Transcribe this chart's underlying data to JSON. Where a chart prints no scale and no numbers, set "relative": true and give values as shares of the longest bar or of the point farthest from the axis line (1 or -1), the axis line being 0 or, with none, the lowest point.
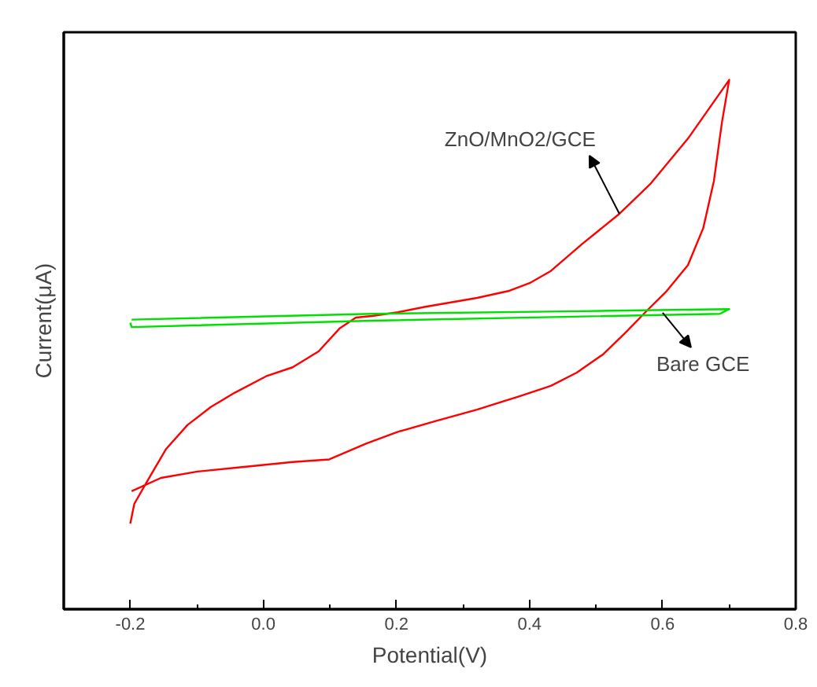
{
  "chart_data": {
    "type": "line",
    "relative": true,
    "xlabel": "Potential(V)",
    "ylabel": "Current(μA)",
    "xlim": [
      -0.3,
      0.8
    ],
    "xticks": [
      -0.2,
      {
        "value": 0,
        "label": "0.0"
      },
      0.2,
      0.4,
      0.6,
      0.8
    ],
    "tick_labels": "x",
    "grid": false,
    "marker": "none",
    "line_style": "solid",
    "series": [
      {
        "color": "#ff0000",
        "x": [
          -0.2,
          -0.194,
          -0.174,
          -0.146,
          -0.114,
          -0.079,
          -0.043,
          0.004,
          0.044,
          0.083,
          0.115,
          0.139,
          0.163,
          0.202,
          0.242,
          0.321,
          0.368,
          0.4,
          0.432,
          0.479,
          0.535,
          0.582,
          0.638,
          0.7,
          0.689,
          0.677,
          0.661,
          0.638,
          0.606,
          0.574,
          0.543,
          0.511,
          0.471,
          0.432,
          0.384,
          0.321,
          0.258,
          0.202,
          0.155,
          0.099,
          0.044,
          -0.035,
          -0.099,
          -0.154,
          -0.198
        ],
        "values": [
          0.162,
          0.199,
          0.243,
          0.303,
          0.348,
          0.382,
          0.409,
          0.44,
          0.457,
          0.487,
          0.531,
          0.551,
          0.554,
          0.561,
          0.571,
          0.588,
          0.601,
          0.616,
          0.639,
          0.69,
          0.747,
          0.804,
          0.889,
          1.0,
          0.919,
          0.809,
          0.72,
          0.65,
          0.601,
          0.561,
          0.521,
          0.482,
          0.447,
          0.422,
          0.402,
          0.377,
          0.355,
          0.335,
          0.313,
          0.283,
          0.278,
          0.268,
          0.26,
          0.248,
          0.223
        ]
      },
      {
        "color": "#00e000",
        "x": [
          -0.198,
          0.163,
          0.479,
          0.7,
          0.686,
          0.479,
          0.163,
          -0.198,
          -0.2
        ],
        "values": [
          0.547,
          0.558,
          0.563,
          0.567,
          0.558,
          0.553,
          0.545,
          0.533,
          0.541
        ]
      }
    ],
    "annotations": [
      {
        "text": "ZnO/MnO2/GCE",
        "x": 0.535,
        "y": 0.747
      },
      {
        "text": "Bare GCE",
        "x": 0.6,
        "y": 0.56
      }
    ]
  }
}
